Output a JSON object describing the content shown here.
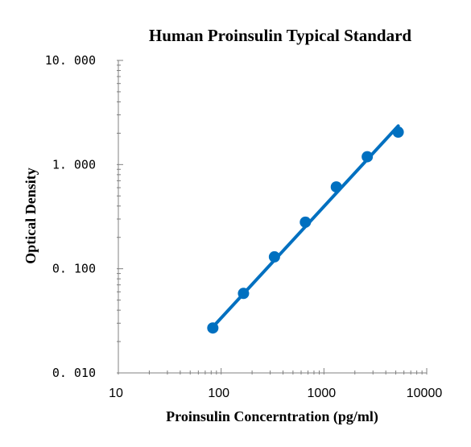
{
  "chart_data": {
    "type": "scatter",
    "title": "Human Proinsulin Typical Standard",
    "xlabel": "Proinsulin Concerntration (pg/ml)",
    "ylabel": "Optical Density",
    "x_scale": "log",
    "y_scale": "log",
    "xlim": [
      10,
      10000
    ],
    "ylim": [
      0.01,
      10
    ],
    "x_ticks": [
      "10",
      "100",
      "1000",
      "10000"
    ],
    "y_ticks": [
      "0. 010",
      "0. 100",
      "1. 000",
      "10. 000"
    ],
    "grid": false,
    "legend": "none",
    "series": [
      {
        "x": [
          83,
          165,
          330,
          660,
          1320,
          2640,
          5280
        ],
        "values": [
          0.027,
          0.058,
          0.13,
          0.28,
          0.61,
          1.19,
          2.05
        ],
        "marker_color": "#0070C0",
        "trendline": {
          "type": "power",
          "from": [
            80,
            0.0265
          ],
          "to": [
            5280,
            2.35
          ],
          "color": "#0070C0"
        }
      }
    ]
  }
}
